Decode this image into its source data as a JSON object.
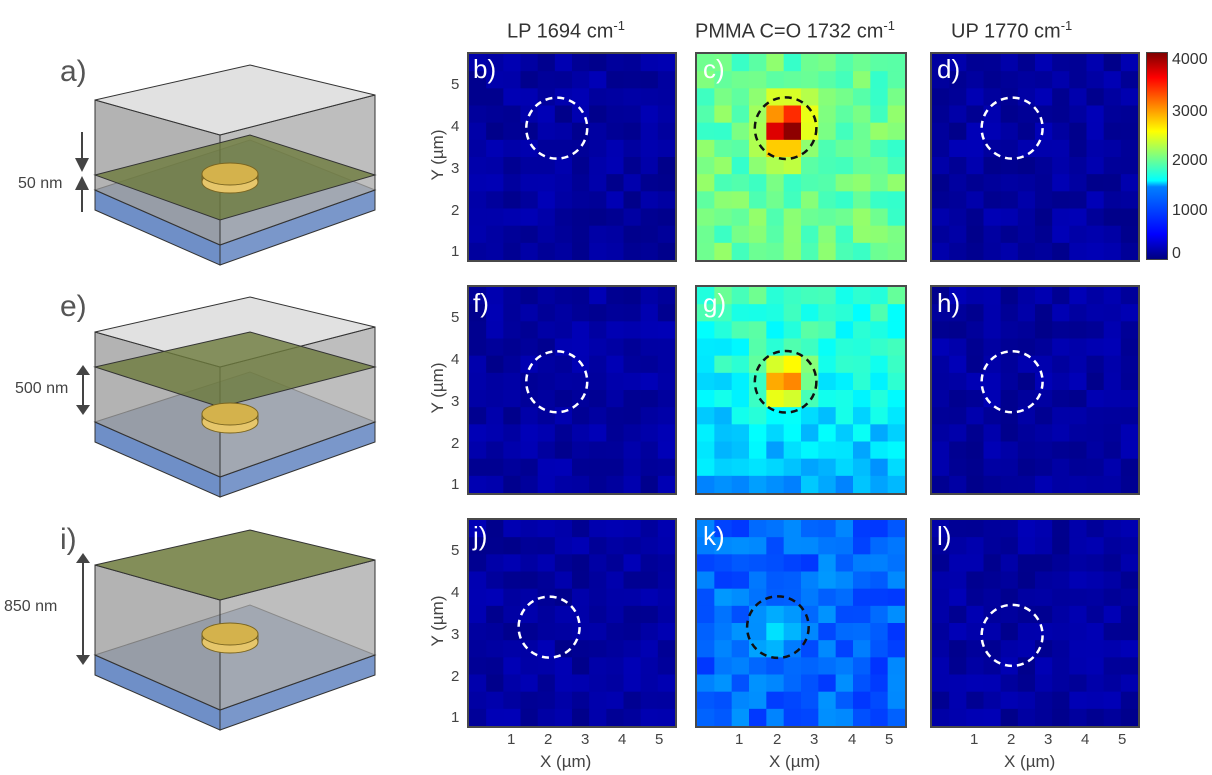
{
  "columns": {
    "lp": {
      "prefix": "LP 1694 cm",
      "sup": "-1"
    },
    "pmma": {
      "prefix": "PMMA C=O 1732 cm",
      "sup": "-1"
    },
    "up": {
      "prefix": "UP 1770 cm",
      "sup": "-1"
    }
  },
  "rows": [
    {
      "schematic_label": "a)",
      "thickness": "50 nm",
      "panels": [
        "b)",
        "c)",
        "d)"
      ],
      "pmma_peak": 4000
    },
    {
      "schematic_label": "e)",
      "thickness": "500 nm",
      "panels": [
        "f)",
        "g)",
        "h)"
      ],
      "pmma_peak": 3200
    },
    {
      "schematic_label": "i)",
      "thickness": "850 nm",
      "panels": [
        "j)",
        "k)",
        "l)"
      ],
      "pmma_peak": 1300
    }
  ],
  "axes": {
    "xlabel": "X (µm)",
    "ylabel": "Y (µm)",
    "xticks": [
      "1",
      "2",
      "3",
      "4",
      "5"
    ],
    "yticks": [
      "5",
      "4",
      "3",
      "2",
      "1"
    ]
  },
  "colorbar": {
    "ticks": [
      "4000",
      "3000",
      "2000",
      "1000",
      "0"
    ],
    "range": [
      0,
      4000
    ],
    "colormap": "jet"
  },
  "chart_data": [
    {
      "type": "heatmap",
      "panel": "b)",
      "title": "LP 1694 cm-1",
      "xlabel": "",
      "ylabel": "Y (µm)",
      "level": "near 0 (~100)"
    },
    {
      "type": "heatmap",
      "panel": "c)",
      "title": "PMMA C=O 1732 cm-1",
      "xlabel": "",
      "ylabel": "",
      "background": 1900,
      "peak": 4000,
      "peak_at": [
        2.5,
        4.0
      ]
    },
    {
      "type": "heatmap",
      "panel": "d)",
      "title": "UP 1770 cm-1",
      "xlabel": "",
      "ylabel": "",
      "level": "near 0 (~50)"
    },
    {
      "type": "heatmap",
      "panel": "f)",
      "xlabel": "",
      "ylabel": "Y (µm)",
      "level": "near 0 (~150)"
    },
    {
      "type": "heatmap",
      "panel": "g)",
      "xlabel": "",
      "ylabel": "",
      "background": 1500,
      "peak": 3200,
      "peak_at": [
        2.5,
        3.5
      ]
    },
    {
      "type": "heatmap",
      "panel": "h)",
      "xlabel": "",
      "ylabel": "",
      "level": "near 0 (~200)"
    },
    {
      "type": "heatmap",
      "panel": "j)",
      "xlabel": "X (µm)",
      "ylabel": "Y (µm)",
      "level": "near 0 (~100)"
    },
    {
      "type": "heatmap",
      "panel": "k)",
      "xlabel": "X (µm)",
      "ylabel": "",
      "background": 900,
      "peak": 1300,
      "peak_at": [
        2.3,
        3.2
      ]
    },
    {
      "type": "heatmap",
      "panel": "l)",
      "xlabel": "X (µm)",
      "ylabel": "",
      "level": "near 0 (~50)"
    }
  ]
}
